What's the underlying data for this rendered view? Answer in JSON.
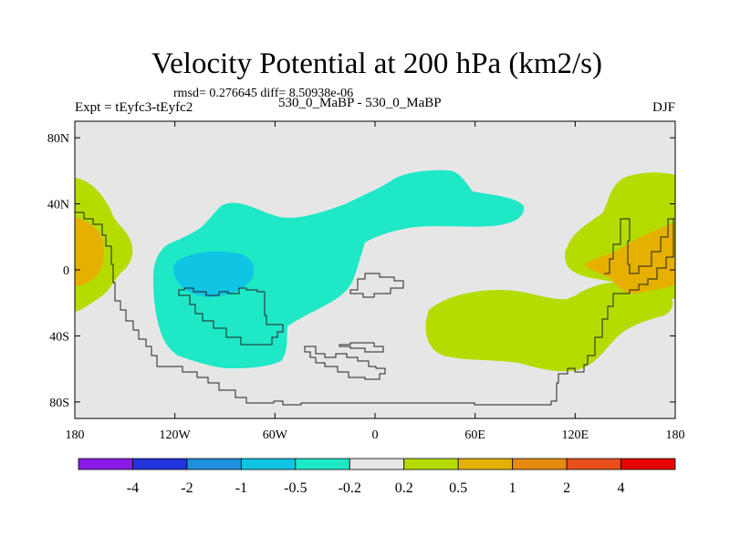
{
  "header": {
    "title": "Velocity Potential at 200 hPa (km2/s)",
    "stats": "rmsd= 0.276645  diff= 8.50938e-06",
    "experiment": "Expt = tEyfc3-tEyfc2",
    "case": "530_0_MaBP - 530_0_MaBP",
    "season": "DJF"
  },
  "chart_data": {
    "type": "heatmap",
    "title": "Velocity Potential at 200 hPa (km2/s)",
    "xlabel": "",
    "ylabel": "",
    "xlim": [
      -180,
      180
    ],
    "ylim": [
      -90,
      90
    ],
    "x_ticks": [
      {
        "value": -180,
        "label": "180"
      },
      {
        "value": -120,
        "label": "120W"
      },
      {
        "value": -60,
        "label": "60W"
      },
      {
        "value": 0,
        "label": "0"
      },
      {
        "value": 60,
        "label": "60E"
      },
      {
        "value": 120,
        "label": "120E"
      },
      {
        "value": 180,
        "label": "180"
      }
    ],
    "y_ticks": [
      {
        "value": 80,
        "label": "80N"
      },
      {
        "value": 40,
        "label": "40N"
      },
      {
        "value": 0,
        "label": "0"
      },
      {
        "value": -40,
        "label": "40S"
      },
      {
        "value": -80,
        "label": "80S"
      }
    ],
    "colorbar": {
      "labels": [
        "-4",
        "-2",
        "-1",
        "-0.5",
        "-0.2",
        "0.2",
        "0.5",
        "1",
        "2",
        "4"
      ],
      "colors": [
        "#8a1be6",
        "#2233dd",
        "#1f8fe0",
        "#10c4e4",
        "#1ee8c6",
        "#e6e6e6",
        "#b4dc00",
        "#e6b000",
        "#e68a10",
        "#e64f1a",
        "#e60000"
      ]
    },
    "regions": [
      {
        "name": "west-pacific-positive",
        "level": "0.2 to 0.5",
        "color": "#b4dc00"
      },
      {
        "name": "west-pacific-core",
        "level": "0.5 to 1",
        "color": "#e6b000"
      },
      {
        "name": "americas-negative",
        "level": "-0.5 to -0.2",
        "color": "#1ee8c6"
      },
      {
        "name": "americas-core",
        "level": "-1 to -0.5",
        "color": "#10c4e4"
      },
      {
        "name": "indian-ocean-positive",
        "level": "0.2 to 0.5",
        "color": "#b4dc00"
      },
      {
        "name": "maritime-continent-positive",
        "level": "0.2 to 0.5",
        "color": "#b4dc00"
      },
      {
        "name": "maritime-continent-core",
        "level": "0.5 to 1",
        "color": "#e6b000"
      }
    ],
    "background_color": "#e6e6e6"
  }
}
